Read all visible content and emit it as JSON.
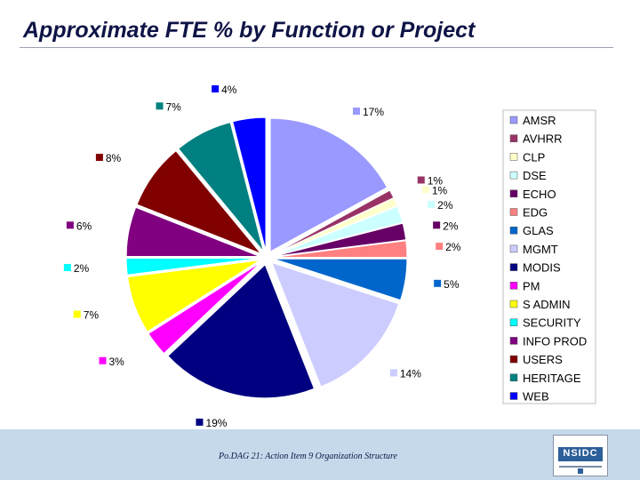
{
  "title": "Approximate FTE % by Function or Project",
  "footer": "Po.DAG 21:  Action Item 9  Organization Structure",
  "logo_text": "NSIDC",
  "chart_data": {
    "type": "pie",
    "title": "",
    "legend_position": "right",
    "slices": [
      {
        "name": "AMSR",
        "value": 17,
        "label": "17%",
        "color": "#9999ff"
      },
      {
        "name": "AVHRR",
        "value": 1,
        "label": "1%",
        "color": "#993366"
      },
      {
        "name": "CLP",
        "value": 1,
        "label": "1%",
        "color": "#ffffcc"
      },
      {
        "name": "DSE",
        "value": 2,
        "label": "2%",
        "color": "#ccffff"
      },
      {
        "name": "ECHO",
        "value": 2,
        "label": "2%",
        "color": "#660066"
      },
      {
        "name": "EDG",
        "value": 2,
        "label": "2%",
        "color": "#ff8080"
      },
      {
        "name": "GLAS",
        "value": 5,
        "label": "5%",
        "color": "#0066cc"
      },
      {
        "name": "MGMT",
        "value": 14,
        "label": "14%",
        "color": "#ccccff"
      },
      {
        "name": "MODIS",
        "value": 19,
        "label": "19%",
        "color": "#000080"
      },
      {
        "name": "PM",
        "value": 3,
        "label": "3%",
        "color": "#ff00ff"
      },
      {
        "name": "S ADMIN",
        "value": 7,
        "label": "7%",
        "color": "#ffff00"
      },
      {
        "name": "SECURITY",
        "value": 2,
        "label": "2%",
        "color": "#00ffff"
      },
      {
        "name": "INFO PROD",
        "value": 6,
        "label": "6%",
        "color": "#800080"
      },
      {
        "name": "USERS",
        "value": 8,
        "label": "8%",
        "color": "#800000"
      },
      {
        "name": "HERITAGE",
        "value": 7,
        "label": "7%",
        "color": "#008080"
      },
      {
        "name": "WEB",
        "value": 4,
        "label": "4%",
        "color": "#0000ff"
      }
    ]
  }
}
